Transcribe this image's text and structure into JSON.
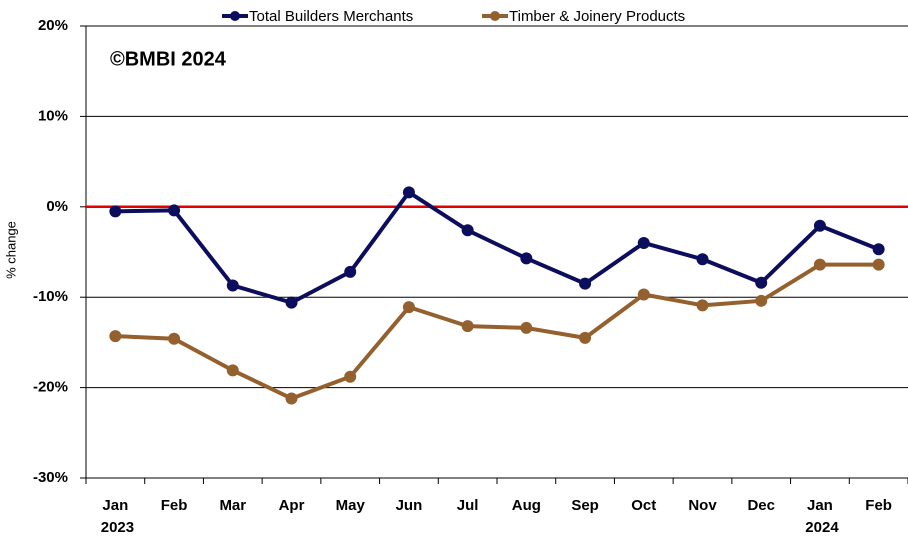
{
  "chart_data": {
    "type": "line",
    "annotation": "©BMBI 2024",
    "y_label": "% change",
    "categories": [
      "Jan 2023",
      "Feb",
      "Mar",
      "Apr",
      "May",
      "Jun",
      "Jul",
      "Aug",
      "Sep",
      "Oct",
      "Nov",
      "Dec",
      "Jan 2024",
      "Feb"
    ],
    "series": [
      {
        "name": "Total Builders Merchants",
        "color": "#0d0d5e",
        "values": [
          -0.5,
          -0.4,
          -8.7,
          -10.6,
          -7.2,
          1.6,
          -2.6,
          -5.7,
          -8.5,
          -4.0,
          -5.8,
          -8.4,
          -2.1,
          -4.7
        ]
      },
      {
        "name": "Timber & Joinery Products",
        "color": "#94602d",
        "values": [
          -14.3,
          -14.6,
          -18.1,
          -21.2,
          -18.8,
          -11.1,
          -13.2,
          -13.4,
          -14.5,
          -9.7,
          -10.9,
          -10.4,
          -6.4,
          -6.4
        ]
      }
    ],
    "ylim": [
      -30,
      20
    ],
    "yticks": [
      {
        "value": -30,
        "label": "-30%"
      },
      {
        "value": -20,
        "label": "-20%"
      },
      {
        "value": -10,
        "label": "-10%"
      },
      {
        "value": 0,
        "label": "0%"
      },
      {
        "value": 10,
        "label": "10%"
      },
      {
        "value": 20,
        "label": "20%"
      }
    ],
    "grid": true,
    "reference_line": {
      "value": 0,
      "color": "#e00000"
    },
    "legend": "top"
  }
}
